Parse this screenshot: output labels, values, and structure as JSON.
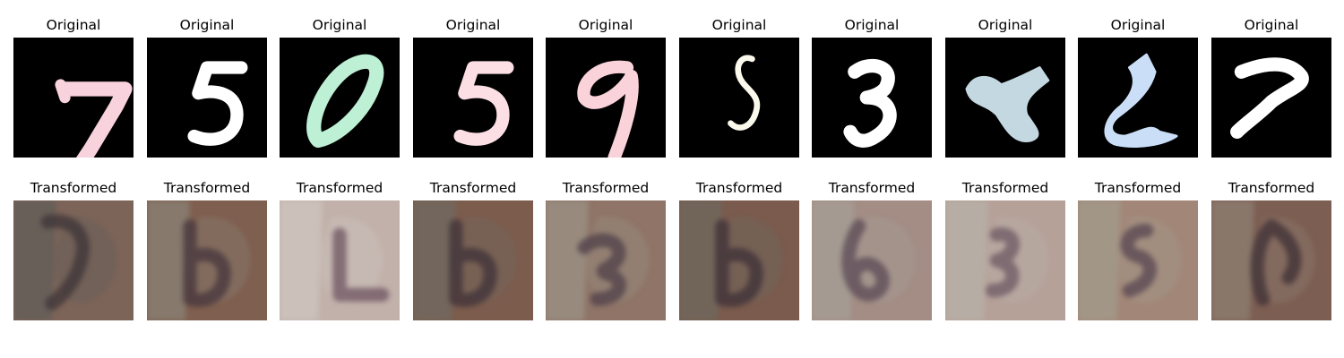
{
  "original_title": "Original",
  "transformed_title": "Transformed",
  "originals": [
    {
      "digit": "7",
      "color": "#f8d2dc"
    },
    {
      "digit": "5",
      "color": "#ffffff"
    },
    {
      "digit": "0",
      "color": "#bdf0d4"
    },
    {
      "digit": "5",
      "color": "#fcdfe4"
    },
    {
      "digit": "9",
      "color": "#fad2da"
    },
    {
      "digit": "5",
      "color": "#fbf8ec"
    },
    {
      "digit": "3",
      "color": "#ffffff"
    },
    {
      "digit": "blob",
      "color": "#c3d8e0"
    },
    {
      "digit": "2",
      "color": "#cadff7"
    },
    {
      "digit": "7",
      "color": "#ffffff"
    }
  ],
  "transformed": [
    {
      "bg": "#7d6458",
      "tint": "#5e5c58",
      "ink": "#3e3438"
    },
    {
      "bg": "#7f5f4f",
      "tint": "#8a8579",
      "ink": "#45363e"
    },
    {
      "bg": "#c2b1ab",
      "tint": "#cfc6c1",
      "ink": "#6e5460"
    },
    {
      "bg": "#7c5c4d",
      "tint": "#6f6b62",
      "ink": "#3f3139"
    },
    {
      "bg": "#8f7467",
      "tint": "#9b9488",
      "ink": "#4f3f4a"
    },
    {
      "bg": "#7a5b4d",
      "tint": "#6d6a60",
      "ink": "#3d3038"
    },
    {
      "bg": "#a38d85",
      "tint": "#a5a097",
      "ink": "#5b4a56"
    },
    {
      "bg": "#b6a199",
      "tint": "#b7b2a8",
      "ink": "#6c5864"
    },
    {
      "bg": "#a28778",
      "tint": "#a29c8d",
      "ink": "#574651"
    },
    {
      "bg": "#7d5e52",
      "tint": "#8e8175",
      "ink": "#3f3036"
    }
  ]
}
